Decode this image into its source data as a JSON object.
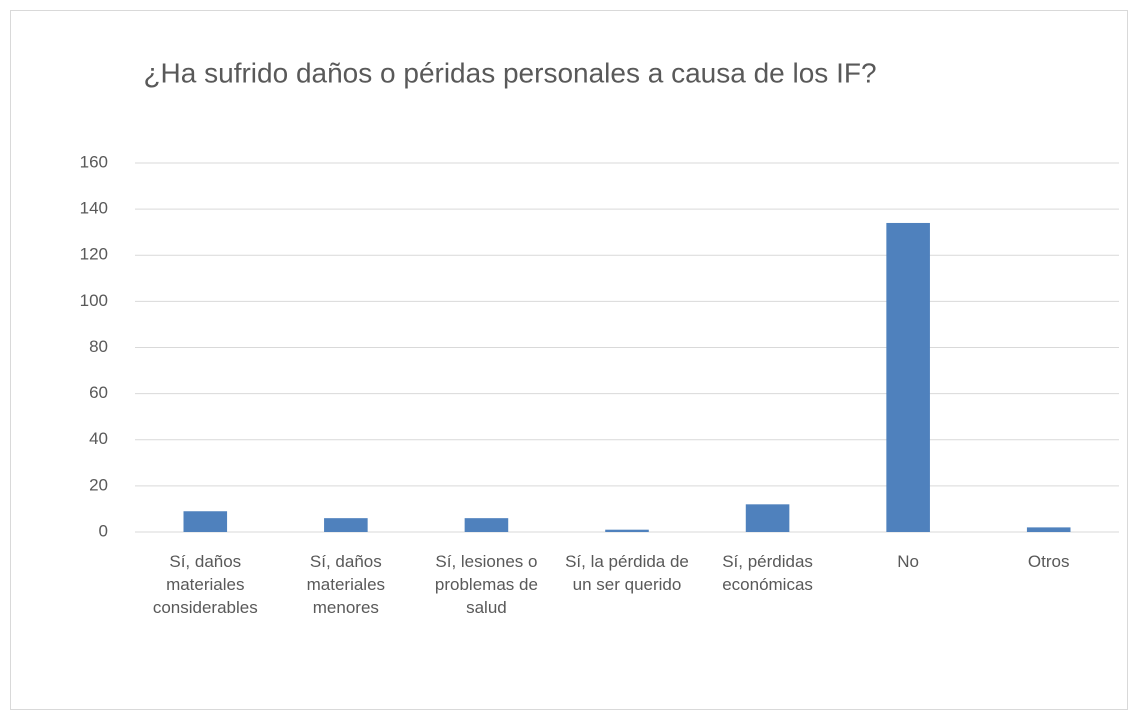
{
  "chart_data": {
    "type": "bar",
    "title": "¿Ha sufrido daños o péridas personales a causa de los IF?",
    "categories": [
      "Sí, daños materiales considerables",
      "Sí, daños materiales menores",
      "Sí, lesiones o problemas de salud",
      "Sí, la pérdida de un ser querido",
      "Sí, pérdidas económicas",
      "No",
      "Otros"
    ],
    "values": [
      9,
      6,
      6,
      1,
      12,
      134,
      2
    ],
    "color": "#4f81bd",
    "ylim": [
      0,
      160
    ],
    "yticks": [
      0,
      20,
      40,
      60,
      80,
      100,
      120,
      140,
      160
    ],
    "grid": true
  }
}
